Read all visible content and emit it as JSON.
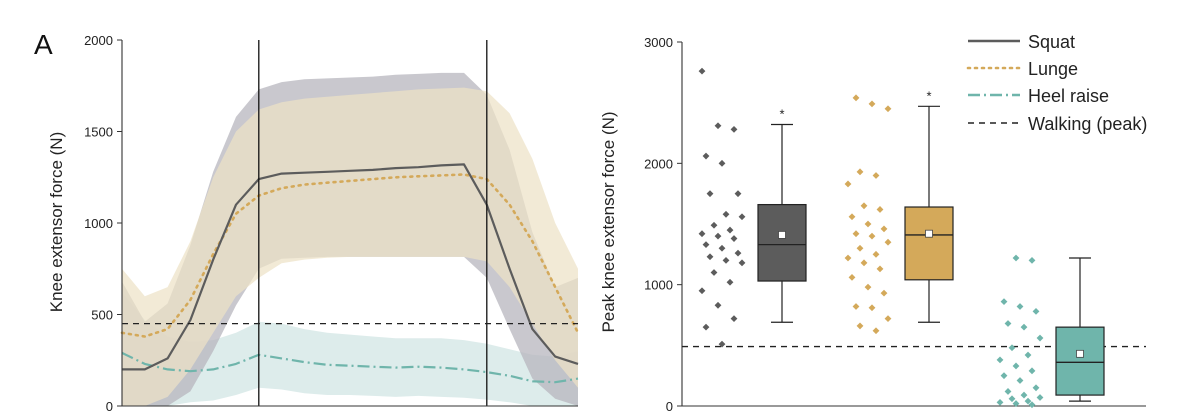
{
  "panel_label": "A",
  "colors": {
    "squat": "#5c5c5c",
    "lunge": "#d4a95a",
    "heel": "#6fb5ab",
    "squat_band": "#b7b6bd",
    "lunge_band": "#ede2c6",
    "heel_band": "#d2e6e4",
    "walking": "#222222"
  },
  "chart_data": [
    {
      "type": "line",
      "ylabel": "Knee extensor force (N)",
      "xlabel": "",
      "ylim": [
        0,
        2000
      ],
      "yticks": [
        "0",
        "500",
        "1000",
        "1500",
        "2000"
      ],
      "xlim": [
        0,
        100
      ],
      "phase_lines_x": [
        30,
        80
      ],
      "walking_peak": 450,
      "series": [
        {
          "key": "squat",
          "x": [
            0,
            5,
            10,
            15,
            20,
            25,
            30,
            35,
            40,
            45,
            50,
            55,
            60,
            65,
            70,
            75,
            80,
            85,
            90,
            95,
            100
          ],
          "y": [
            200,
            200,
            260,
            470,
            800,
            1100,
            1240,
            1270,
            1275,
            1280,
            1285,
            1290,
            1300,
            1305,
            1315,
            1320,
            1100,
            750,
            420,
            270,
            230
          ],
          "upper": [
            680,
            460,
            560,
            880,
            1280,
            1580,
            1730,
            1770,
            1785,
            1790,
            1795,
            1800,
            1810,
            1815,
            1820,
            1820,
            1700,
            1400,
            950,
            650,
            700
          ],
          "lower": [
            0,
            0,
            0,
            80,
            300,
            550,
            750,
            805,
            810,
            815,
            815,
            815,
            815,
            815,
            815,
            815,
            700,
            420,
            150,
            40,
            0
          ]
        },
        {
          "key": "lunge",
          "x": [
            0,
            5,
            10,
            15,
            20,
            25,
            30,
            35,
            40,
            45,
            50,
            55,
            60,
            65,
            70,
            75,
            80,
            85,
            90,
            95,
            100
          ],
          "y": [
            400,
            380,
            420,
            580,
            830,
            1050,
            1150,
            1190,
            1210,
            1220,
            1230,
            1240,
            1250,
            1255,
            1260,
            1265,
            1240,
            1100,
            900,
            650,
            400
          ],
          "upper": [
            750,
            600,
            650,
            900,
            1250,
            1500,
            1620,
            1660,
            1680,
            1690,
            1700,
            1710,
            1720,
            1730,
            1735,
            1740,
            1720,
            1600,
            1350,
            1000,
            750
          ],
          "lower": [
            0,
            0,
            50,
            200,
            400,
            600,
            700,
            780,
            800,
            810,
            815,
            815,
            815,
            815,
            815,
            815,
            790,
            650,
            450,
            250,
            100
          ]
        },
        {
          "key": "heel",
          "x": [
            0,
            5,
            10,
            15,
            20,
            25,
            30,
            35,
            40,
            45,
            50,
            55,
            60,
            65,
            70,
            75,
            80,
            85,
            90,
            95,
            100
          ],
          "y": [
            290,
            230,
            200,
            190,
            200,
            230,
            280,
            260,
            240,
            225,
            220,
            215,
            210,
            215,
            210,
            200,
            185,
            165,
            135,
            130,
            150
          ],
          "upper": [
            620,
            470,
            380,
            350,
            360,
            400,
            460,
            450,
            420,
            400,
            390,
            380,
            370,
            370,
            370,
            360,
            340,
            310,
            280,
            270,
            300
          ],
          "lower": [
            0,
            0,
            0,
            20,
            30,
            60,
            100,
            90,
            70,
            60,
            60,
            55,
            50,
            55,
            50,
            45,
            35,
            20,
            0,
            0,
            0
          ]
        }
      ]
    },
    {
      "type": "scatter",
      "ylabel": "Peak knee extensor force (N)",
      "ylim": [
        0,
        3000
      ],
      "yticks": [
        "0",
        "1000",
        "2000",
        "3000"
      ],
      "walking_peak": 490,
      "groups": [
        {
          "key": "squat",
          "points": [
            2760,
            2310,
            2280,
            2060,
            2000,
            1750,
            1750,
            1580,
            1560,
            1490,
            1450,
            1420,
            1400,
            1380,
            1330,
            1300,
            1260,
            1230,
            1200,
            1180,
            1100,
            1020,
            950,
            830,
            720,
            650,
            510
          ],
          "box": {
            "whisker_low": 690,
            "q1": 1030,
            "median": 1330,
            "q3": 1660,
            "whisker_high": 2320,
            "mean": 1410
          },
          "significant": true
        },
        {
          "key": "lunge",
          "points": [
            2540,
            2490,
            2450,
            1930,
            1900,
            1830,
            1650,
            1620,
            1560,
            1500,
            1460,
            1420,
            1400,
            1350,
            1300,
            1250,
            1220,
            1180,
            1130,
            1060,
            980,
            930,
            820,
            810,
            720,
            660,
            620
          ],
          "box": {
            "whisker_low": 690,
            "q1": 1040,
            "median": 1410,
            "q3": 1640,
            "whisker_high": 2470,
            "mean": 1420
          },
          "significant": true
        },
        {
          "key": "heel",
          "points": [
            1220,
            1200,
            860,
            820,
            780,
            680,
            650,
            560,
            480,
            420,
            380,
            330,
            290,
            250,
            210,
            150,
            120,
            90,
            70,
            60,
            40,
            30,
            20,
            10
          ],
          "box": {
            "whisker_low": 40,
            "q1": 90,
            "median": 360,
            "q3": 650,
            "whisker_high": 1220,
            "mean": 430
          },
          "significant": false
        }
      ]
    }
  ],
  "legend": {
    "items": [
      {
        "key": "squat",
        "label": "Squat",
        "style": "solid"
      },
      {
        "key": "lunge",
        "label": "Lunge",
        "style": "dotted"
      },
      {
        "key": "heel",
        "label": "Heel raise",
        "style": "dashdot"
      },
      {
        "key": "walking",
        "label": "Walking (peak)",
        "style": "dashed"
      }
    ]
  },
  "significance_marker": "*"
}
